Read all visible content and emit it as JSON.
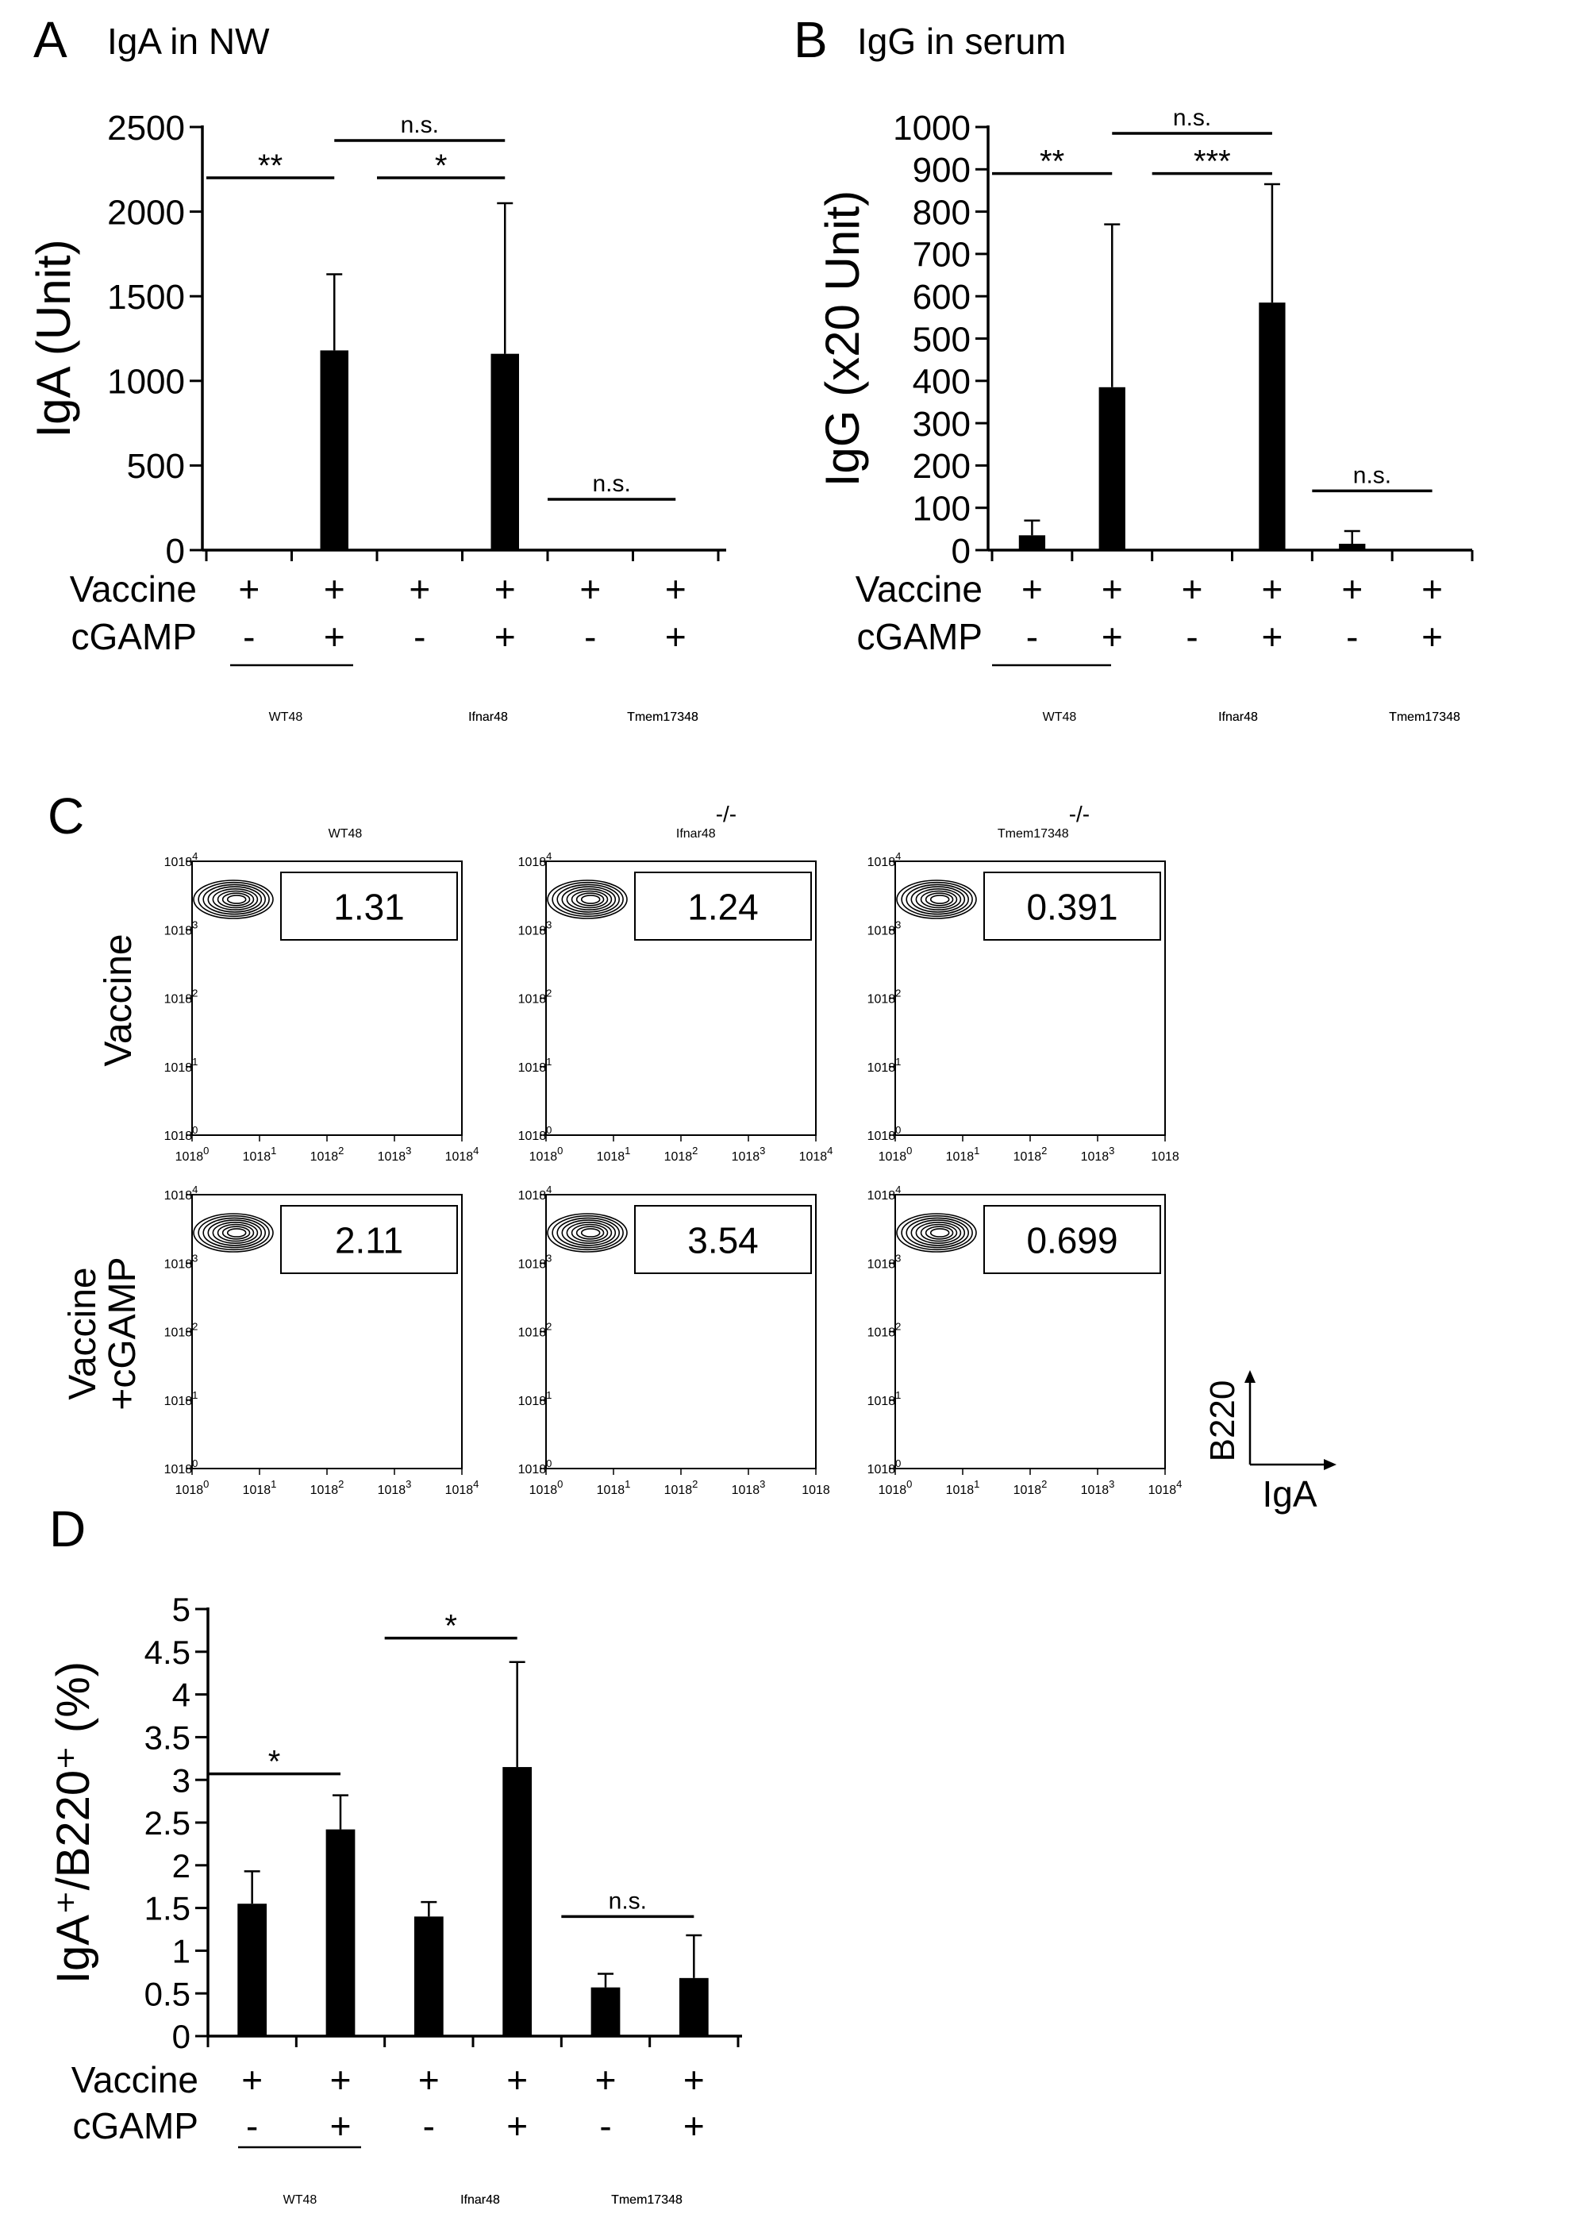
{
  "colors": {
    "bar": "#000000",
    "axis": "#000000",
    "background": "#ffffff"
  },
  "genotypes": [
    "WT",
    "Ifnar",
    "Tmem173"
  ],
  "genotype_superscript": "-/-",
  "row_labels": {
    "vaccine": "Vaccine",
    "cgamp": "cGAMP"
  },
  "conditions": {
    "vaccine": [
      "+",
      "+",
      "+",
      "+",
      "+",
      "+"
    ],
    "cgamp": [
      "-",
      "+",
      "-",
      "+",
      "-",
      "+"
    ]
  },
  "panel_c": {
    "letter": "C",
    "col_titles": [
      "WT",
      "Ifnar",
      "Tmem173"
    ],
    "row_labels": [
      "Vaccine",
      "Vaccine",
      "+cGAMP"
    ],
    "y_ticks": [
      "10",
      "10",
      "10",
      "10",
      "10"
    ],
    "y_tick_exps": [
      "0",
      "1",
      "2",
      "3",
      "4"
    ],
    "x_ticks_full": [
      "10",
      "10",
      "10",
      "10",
      "10"
    ],
    "x_tick_exps_full": [
      "0",
      "1",
      "2",
      "3",
      "4"
    ],
    "x_tick_exps_trunc": [
      "0",
      "1",
      "2",
      "3",
      ""
    ],
    "gates": [
      "1.31",
      "1.24",
      "0.391",
      "2.11",
      "3.54",
      "0.699"
    ],
    "axis_key": {
      "y": "B220",
      "x": "IgA"
    }
  },
  "chart_data": [
    {
      "panel": "A",
      "type": "bar",
      "title": "IgA in NW",
      "ylabel": "IgA (Unit)",
      "ylim": [
        0,
        2500
      ],
      "yticks": [
        "0",
        "500",
        "1000",
        "1500",
        "2000",
        "2500"
      ],
      "categories": [
        "WT Vaccine",
        "WT Vaccine+cGAMP",
        "Ifnar-/- Vaccine",
        "Ifnar-/- Vaccine+cGAMP",
        "Tmem173-/- Vaccine",
        "Tmem173-/- Vaccine+cGAMP"
      ],
      "values": [
        0,
        1180,
        0,
        1160,
        0,
        0
      ],
      "errors": [
        0,
        450,
        0,
        890,
        0,
        0
      ],
      "significance": [
        {
          "from": 0,
          "to": 1,
          "label": "**",
          "y": 2200
        },
        {
          "from": 2,
          "to": 3,
          "label": "*",
          "y": 2200
        },
        {
          "from": 1,
          "to": 3,
          "label": "n.s.",
          "y": 2420
        },
        {
          "from": 4,
          "to": 5,
          "label": "n.s.",
          "y": 300
        }
      ]
    },
    {
      "panel": "B",
      "type": "bar",
      "title": "IgG in serum",
      "ylabel": "IgG (x20 Unit)",
      "ylim": [
        0,
        1000
      ],
      "yticks": [
        "0",
        "100",
        "200",
        "300",
        "400",
        "500",
        "600",
        "700",
        "800",
        "900",
        "1000"
      ],
      "categories": [
        "WT Vaccine",
        "WT Vaccine+cGAMP",
        "Ifnar-/- Vaccine",
        "Ifnar-/- Vaccine+cGAMP",
        "Tmem173-/- Vaccine",
        "Tmem173-/- Vaccine+cGAMP"
      ],
      "values": [
        35,
        385,
        0,
        585,
        15,
        0
      ],
      "errors": [
        35,
        385,
        0,
        280,
        30,
        0
      ],
      "significance": [
        {
          "from": 0,
          "to": 1,
          "label": "**",
          "y": 890
        },
        {
          "from": 2,
          "to": 3,
          "label": "***",
          "y": 890
        },
        {
          "from": 1,
          "to": 3,
          "label": "n.s.",
          "y": 985
        },
        {
          "from": 4,
          "to": 5,
          "label": "n.s.",
          "y": 140
        }
      ]
    },
    {
      "panel": "D",
      "type": "bar",
      "title": "",
      "ylabel": "IgA⁺/B220⁺ (%)",
      "ylim": [
        0,
        5
      ],
      "yticks": [
        "0",
        "0.5",
        "1",
        "1.5",
        "2",
        "2.5",
        "3",
        "3.5",
        "4",
        "4.5",
        "5"
      ],
      "categories": [
        "WT Vaccine",
        "WT Vaccine+cGAMP",
        "Ifnar-/- Vaccine",
        "Ifnar-/- Vaccine+cGAMP",
        "Tmem173-/- Vaccine",
        "Tmem173-/- Vaccine+cGAMP"
      ],
      "values": [
        1.55,
        2.42,
        1.4,
        3.15,
        0.57,
        0.68
      ],
      "errors": [
        0.38,
        0.4,
        0.17,
        1.23,
        0.16,
        0.5
      ],
      "significance": [
        {
          "from": 0,
          "to": 1,
          "label": "*",
          "y": 3.07
        },
        {
          "from": 2,
          "to": 3,
          "label": "*",
          "y": 4.66
        },
        {
          "from": 4,
          "to": 5,
          "label": "n.s.",
          "y": 1.4
        }
      ]
    }
  ]
}
